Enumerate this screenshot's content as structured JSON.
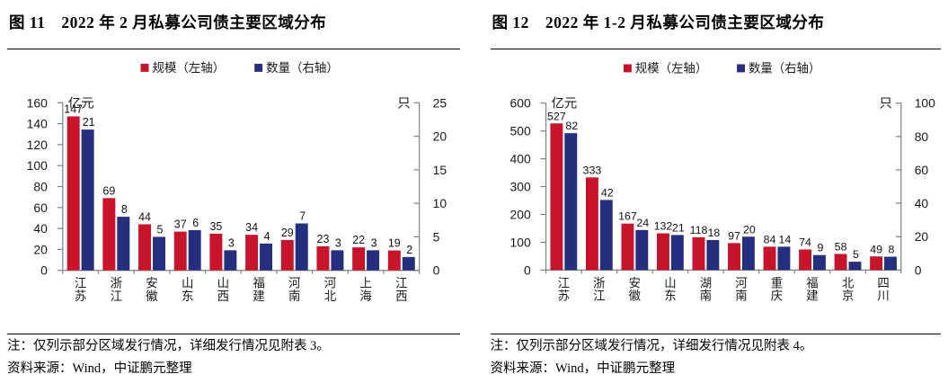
{
  "accent_colors": {
    "scale_red": "#c8142b",
    "count_blue": "#252f7d",
    "axis_grey": "#7f7f7f"
  },
  "chart_data": [
    {
      "type": "bar",
      "title": "图 11　2022 年 2 月私募公司债主要区域分布",
      "categories": [
        "江苏",
        "浙江",
        "安徽",
        "山东",
        "山西",
        "福建",
        "河南",
        "河北",
        "上海",
        "江西"
      ],
      "series": [
        {
          "name": "规模（左轴）",
          "axis": "left",
          "color": "#c8142b",
          "values": [
            147,
            69,
            44,
            37,
            35,
            34,
            29,
            23,
            22,
            19
          ]
        },
        {
          "name": "数量（右轴）",
          "axis": "right",
          "color": "#252f7d",
          "values": [
            21,
            8,
            5,
            6,
            3,
            4,
            7,
            3,
            3,
            2
          ]
        }
      ],
      "left_axis": {
        "unit": "亿元",
        "min": 0,
        "max": 160,
        "step": 20
      },
      "right_axis": {
        "unit": "只",
        "min": 0,
        "max": 25,
        "step": 5
      },
      "legend_position": "top",
      "grid": false,
      "note_line1": "注：仅列示部分区域发行情况，详细发行情况见附表 3。",
      "note_line2": "资料来源：Wind，中证鹏元整理"
    },
    {
      "type": "bar",
      "title": "图 12　2022 年 1-2 月私募公司债主要区域分布",
      "categories": [
        "江苏",
        "浙江",
        "安徽",
        "山东",
        "湖南",
        "河南",
        "重庆",
        "福建",
        "北京",
        "四川"
      ],
      "series": [
        {
          "name": "规模（左轴）",
          "axis": "left",
          "color": "#c8142b",
          "values": [
            527,
            333,
            167,
            132,
            118,
            97,
            84,
            74,
            58,
            49
          ]
        },
        {
          "name": "数量（右轴）",
          "axis": "right",
          "color": "#252f7d",
          "values": [
            82,
            42,
            24,
            21,
            18,
            20,
            14,
            9,
            5,
            8
          ]
        }
      ],
      "left_axis": {
        "unit": "亿元",
        "min": 0,
        "max": 600,
        "step": 100
      },
      "right_axis": {
        "unit": "只",
        "min": 0,
        "max": 100,
        "step": 20
      },
      "legend_position": "top",
      "grid": false,
      "note_line1": "注：仅列示部分区域发行情况，详细发行情况见附表 4。",
      "note_line2": "资料来源：Wind，中证鹏元整理"
    }
  ]
}
